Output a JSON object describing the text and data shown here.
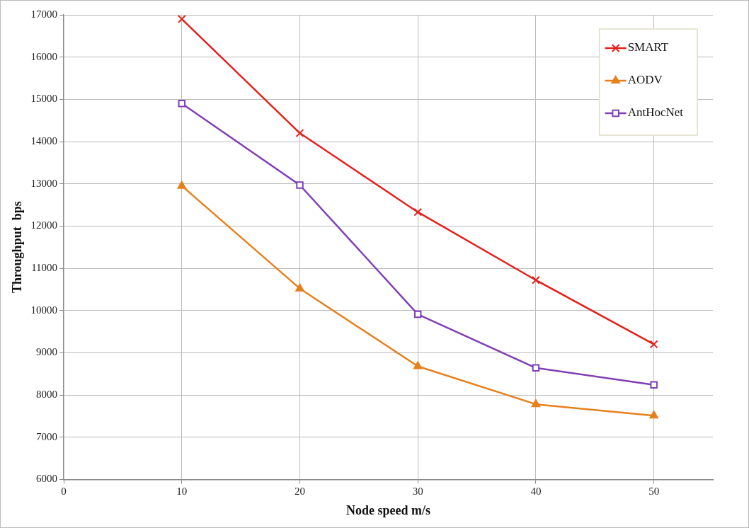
{
  "chart_data": {
    "type": "line",
    "xlabel": "Node speed m/s",
    "ylabel": "Throughput  bps",
    "x": [
      10,
      20,
      30,
      40,
      50
    ],
    "series": [
      {
        "name": "SMART",
        "color": "#e3211c",
        "marker": "cross",
        "values": [
          16900,
          14200,
          12330,
          10720,
          9200
        ]
      },
      {
        "name": "AODV",
        "color": "#e6801c",
        "marker": "triangle",
        "values": [
          12950,
          10520,
          8680,
          7780,
          7510
        ]
      },
      {
        "name": "AntHocNet",
        "color": "#7f3fb5",
        "marker": "square",
        "values": [
          14900,
          12970,
          9910,
          8640,
          8240
        ]
      }
    ],
    "xlim": [
      0,
      55
    ],
    "xticks": [
      0,
      10,
      20,
      30,
      40,
      50
    ],
    "ylim": [
      6000,
      17000
    ],
    "yticks": [
      6000,
      7000,
      8000,
      9000,
      10000,
      11000,
      12000,
      13000,
      14000,
      15000,
      16000,
      17000
    ],
    "grid": true,
    "line_style": "solid",
    "legend": "top right"
  }
}
